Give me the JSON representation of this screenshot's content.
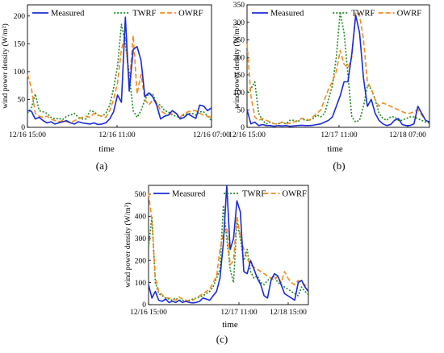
{
  "colors": {
    "measured": "#1a2bd6",
    "twrf": "#1e8a1e",
    "owrf": "#f08c1e"
  },
  "legend": {
    "measured": "Measured",
    "twrf": "TWRF",
    "owrf": "OWRF"
  },
  "chart_data": [
    {
      "panel": "(a)",
      "type": "line",
      "xlabel": "time",
      "ylabel": "wind power density (W/m²)",
      "xticks": [
        "12/16 15:00",
        "12/16 11:00",
        "12/16 07:00"
      ],
      "ylim": [
        0,
        220
      ],
      "yticks": [
        0,
        50,
        100,
        150,
        200
      ],
      "x": [
        0,
        1,
        2,
        3,
        4,
        5,
        6,
        7,
        8,
        9,
        10,
        11,
        12,
        13,
        14,
        15,
        16,
        17,
        18,
        19,
        20,
        21,
        22,
        23,
        24,
        25,
        26,
        27,
        28,
        29,
        30,
        31,
        32,
        33,
        34,
        35,
        36,
        37,
        38,
        39,
        40,
        41,
        42,
        43,
        44,
        45,
        46,
        47
      ],
      "series": [
        {
          "name": "Measured",
          "values": [
            30,
            29,
            15,
            18,
            12,
            8,
            10,
            6,
            8,
            10,
            12,
            8,
            6,
            10,
            8,
            7,
            6,
            8,
            5,
            6,
            8,
            15,
            28,
            58,
            45,
            198,
            65,
            140,
            145,
            120,
            55,
            62,
            55,
            40,
            15,
            20,
            22,
            30,
            25,
            15,
            18,
            24,
            20,
            16,
            40,
            38,
            30,
            35
          ]
        },
        {
          "name": "TWRF",
          "values": [
            25,
            35,
            60,
            30,
            28,
            25,
            18,
            15,
            16,
            14,
            20,
            22,
            25,
            18,
            15,
            15,
            30,
            28,
            22,
            20,
            25,
            40,
            70,
            110,
            185,
            150,
            95,
            30,
            18,
            30,
            50,
            60,
            60,
            42,
            40,
            30,
            28,
            22,
            20,
            18,
            22,
            25,
            25,
            22,
            28,
            28,
            20,
            12
          ]
        },
        {
          "name": "OWRF",
          "values": [
            95,
            70,
            25,
            20,
            18,
            20,
            15,
            12,
            10,
            12,
            10,
            8,
            12,
            15,
            18,
            20,
            18,
            25,
            22,
            20,
            18,
            30,
            50,
            80,
            140,
            165,
            75,
            165,
            60,
            95,
            50,
            40,
            50,
            45,
            30,
            25,
            22,
            25,
            25,
            18,
            25,
            28,
            30,
            30,
            25,
            22,
            20,
            18
          ]
        }
      ]
    },
    {
      "panel": "(b)",
      "type": "line",
      "xlabel": "time",
      "ylabel": "wind power density (W/m²)",
      "xticks": [
        "12/16 15:00",
        "12/17 11:00",
        "12/18 07:00"
      ],
      "ylim": [
        0,
        350
      ],
      "yticks": [
        0,
        50,
        100,
        150,
        200,
        250,
        300,
        350
      ],
      "x": [
        0,
        1,
        2,
        3,
        4,
        5,
        6,
        7,
        8,
        9,
        10,
        11,
        12,
        13,
        14,
        15,
        16,
        17,
        18,
        19,
        20,
        21,
        22,
        23,
        24,
        25,
        26,
        27,
        28,
        29,
        30,
        31,
        32,
        33,
        34,
        35,
        36,
        37,
        38,
        39,
        40,
        41,
        42,
        43,
        44,
        45,
        46,
        47
      ],
      "series": [
        {
          "name": "Measured",
          "values": [
            50,
            10,
            15,
            5,
            8,
            5,
            5,
            3,
            5,
            4,
            5,
            3,
            4,
            5,
            6,
            5,
            5,
            6,
            8,
            10,
            15,
            20,
            30,
            60,
            90,
            130,
            130,
            210,
            320,
            270,
            140,
            60,
            80,
            40,
            20,
            10,
            5,
            8,
            20,
            25,
            8,
            5,
            5,
            10,
            60,
            40,
            20,
            15
          ]
        },
        {
          "name": "TWRF",
          "values": [
            100,
            110,
            130,
            40,
            20,
            10,
            15,
            10,
            10,
            15,
            10,
            20,
            20,
            15,
            25,
            20,
            20,
            25,
            35,
            30,
            40,
            80,
            120,
            200,
            330,
            270,
            150,
            30,
            15,
            20,
            60,
            120,
            110,
            80,
            40,
            25,
            20,
            30,
            30,
            20,
            20,
            25,
            30,
            30,
            25,
            20,
            15,
            12
          ]
        },
        {
          "name": "OWRF",
          "values": [
            240,
            90,
            30,
            20,
            25,
            20,
            15,
            10,
            10,
            15,
            10,
            12,
            15,
            20,
            25,
            25,
            20,
            30,
            40,
            50,
            80,
            110,
            130,
            160,
            220,
            180,
            170,
            200,
            330,
            320,
            250,
            130,
            110,
            80,
            60,
            70,
            65,
            60,
            55,
            50,
            45,
            40,
            40,
            45,
            50,
            35,
            20,
            15
          ]
        }
      ]
    },
    {
      "panel": "(c)",
      "type": "line",
      "xlabel": "time",
      "ylabel": "wind power density (W/m²)",
      "xticks": [
        "12/16 15:00",
        "12/17 11:00",
        "12/18 15:00"
      ],
      "ylim": [
        0,
        540
      ],
      "yticks": [
        0,
        100,
        200,
        300,
        400,
        500
      ],
      "x": [
        0,
        1,
        2,
        3,
        4,
        5,
        6,
        7,
        8,
        9,
        10,
        11,
        12,
        13,
        14,
        15,
        16,
        17,
        18,
        19,
        20,
        21,
        22,
        23,
        24,
        25,
        26,
        27,
        28,
        29,
        30,
        31,
        32,
        33,
        34,
        35,
        36,
        37,
        38,
        39,
        40,
        41,
        42,
        43,
        44,
        45,
        46,
        47
      ],
      "series": [
        {
          "name": "Measured",
          "values": [
            90,
            30,
            60,
            20,
            15,
            25,
            10,
            15,
            10,
            20,
            10,
            15,
            10,
            8,
            10,
            15,
            30,
            25,
            20,
            40,
            60,
            120,
            280,
            540,
            250,
            300,
            470,
            420,
            150,
            140,
            200,
            160,
            120,
            90,
            40,
            30,
            110,
            140,
            130,
            90,
            50,
            40,
            30,
            20,
            100,
            110,
            80,
            60
          ]
        },
        {
          "name": "TWRF",
          "values": [
            260,
            400,
            100,
            50,
            40,
            30,
            25,
            20,
            30,
            20,
            20,
            15,
            20,
            25,
            30,
            35,
            40,
            50,
            60,
            80,
            120,
            160,
            450,
            300,
            160,
            100,
            380,
            300,
            200,
            250,
            150,
            120,
            130,
            100,
            90,
            110,
            120,
            130,
            100,
            90,
            80,
            70,
            60,
            50,
            40,
            80,
            60,
            45
          ]
        },
        {
          "name": "OWRF",
          "values": [
            505,
            380,
            120,
            60,
            45,
            30,
            30,
            25,
            20,
            35,
            25,
            20,
            15,
            20,
            30,
            40,
            50,
            60,
            70,
            100,
            130,
            250,
            320,
            350,
            180,
            200,
            400,
            310,
            250,
            210,
            180,
            170,
            160,
            150,
            140,
            130,
            120,
            110,
            130,
            100,
            150,
            120,
            100,
            90,
            110,
            100,
            90,
            70
          ]
        }
      ]
    }
  ]
}
